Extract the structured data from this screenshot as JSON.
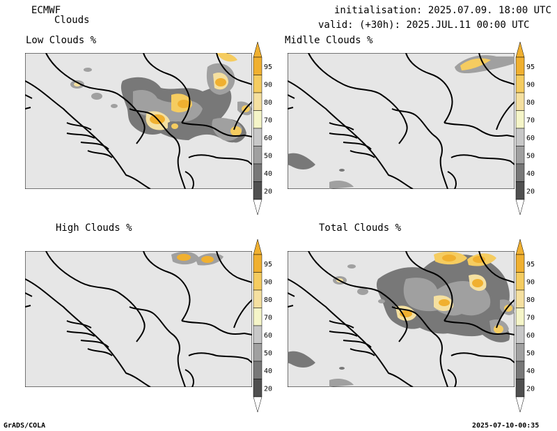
{
  "header": {
    "model": "ECMWF",
    "product": "Clouds",
    "init_label": "initialisation:",
    "init_value": "2025.07.09. 18:00 UTC",
    "valid_label": "valid: (+30h):",
    "valid_value": "2025.JUL.11 00:00 UTC"
  },
  "panels": [
    {
      "title": "Low Clouds %"
    },
    {
      "title": "Midlle Clouds %"
    },
    {
      "title": "High Clouds %"
    },
    {
      "title": "Total Clouds %"
    }
  ],
  "colorbar": {
    "levels": [
      "95",
      "90",
      "80",
      "70",
      "60",
      "50",
      "40",
      "20"
    ],
    "colors": {
      "95": "#f0b030",
      "90": "#f5cc60",
      "80": "#f5e0a0",
      "70": "#f5f5c8",
      "60": "#c8c8c8",
      "50": "#a0a0a0",
      "40": "#787878",
      "20": "#505050"
    }
  },
  "footer": {
    "left": "GrADS/COLA",
    "right": "2025-07-10-00:35"
  }
}
